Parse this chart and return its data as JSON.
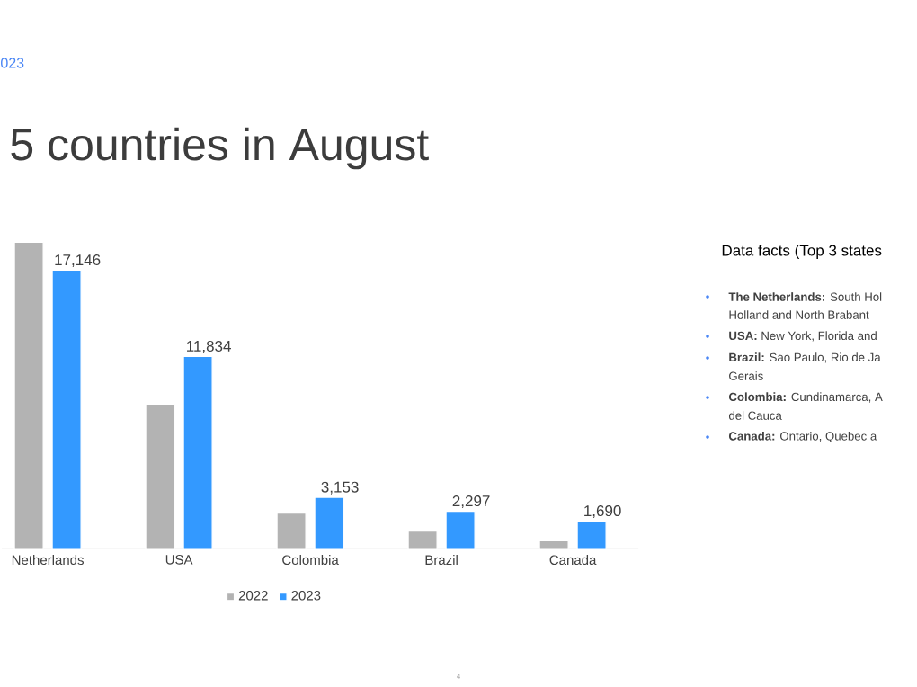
{
  "chart_data": {
    "type": "bar",
    "subtitle": "023",
    "title": "5 countries in August",
    "categories": [
      "Netherlands",
      "USA",
      "Colombia",
      "Brazil",
      "Canada"
    ],
    "series": [
      {
        "name": "2022",
        "color": "#b3b3b3",
        "values": [
          18870,
          8900,
          2180,
          1070,
          480
        ]
      },
      {
        "name": "2023",
        "color": "#3399ff",
        "values": [
          17146,
          11834,
          3153,
          2297,
          1690
        ],
        "value_labels": [
          "17,146",
          "11,834",
          "3,153",
          "2,297",
          "1,690"
        ]
      }
    ],
    "legend": "bottom",
    "annotations": [
      "Data facts (Top 3 states",
      "**The Netherlands:** South Hol",
      "Holland and North Brabant",
      "**USA:** New York, Florida and",
      "**Brazil:** Sao Paulo, Rio de Ja",
      "Gerais",
      "**Colombia:** Cundinamarca, A",
      "del Cauca",
      "**Canada:** Ontario, Quebec a",
      "4"
    ]
  }
}
